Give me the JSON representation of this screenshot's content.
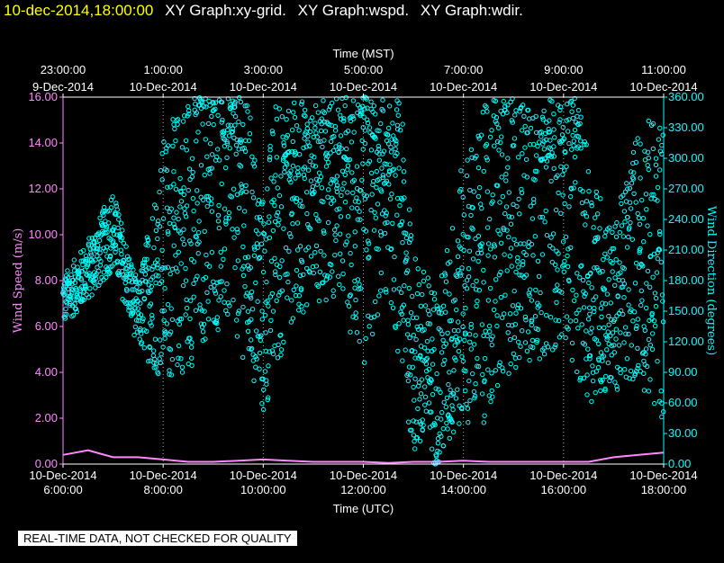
{
  "header": {
    "timestamp": "10-dec-2014,18:00:00",
    "graphs": [
      "XY Graph:xy-grid.",
      "XY Graph:wspd.",
      "XY Graph:wdir."
    ]
  },
  "disclaimer": "REAL-TIME DATA, NOT CHECKED FOR QUALITY",
  "colors": {
    "left_axis": "#ff88ff",
    "right_axis": "#00ffff",
    "speed_series": "#ff88ff",
    "direction_series": "#00ffff",
    "grid": "#aaaaaa"
  },
  "chart_data": {
    "type": "scatter",
    "top_axis": {
      "title": "Time (MST)",
      "ticks": [
        {
          "time": "23:00:00",
          "date": "9-Dec-2014"
        },
        {
          "time": "1:00:00",
          "date": "10-Dec-2014"
        },
        {
          "time": "3:00:00",
          "date": "10-Dec-2014"
        },
        {
          "time": "5:00:00",
          "date": "10-Dec-2014"
        },
        {
          "time": "7:00:00",
          "date": "10-Dec-2014"
        },
        {
          "time": "9:00:00",
          "date": "10-Dec-2014"
        },
        {
          "time": "11:00:00",
          "date": "10-Dec-2014"
        }
      ]
    },
    "bottom_axis": {
      "title": "Time (UTC)",
      "ticks": [
        {
          "date": "10-Dec-2014",
          "time": "6:00:00"
        },
        {
          "date": "10-Dec-2014",
          "time": "8:00:00"
        },
        {
          "date": "10-Dec-2014",
          "time": "10:00:00"
        },
        {
          "date": "10-Dec-2014",
          "time": "12:00:00"
        },
        {
          "date": "10-Dec-2014",
          "time": "14:00:00"
        },
        {
          "date": "10-Dec-2014",
          "time": "16:00:00"
        },
        {
          "date": "10-Dec-2014",
          "time": "18:00:00"
        }
      ],
      "range_hours_utc": [
        6,
        18
      ]
    },
    "left_axis": {
      "title": "Wind Speed (m/s)",
      "range": [
        0,
        16
      ],
      "ticks": [
        "0.00",
        "2.00",
        "4.00",
        "6.00",
        "8.00",
        "10.00",
        "12.00",
        "14.00",
        "16.00"
      ]
    },
    "right_axis": {
      "title": "Wind Direction (degrees)",
      "range": [
        0,
        360
      ],
      "ticks": [
        "0.00",
        "30.00",
        "60.00",
        "90.00",
        "120.00",
        "150.00",
        "180.00",
        "210.00",
        "240.00",
        "270.00",
        "300.00",
        "330.00",
        "360.00"
      ]
    },
    "grid": "vertical dotted at each bottom tick",
    "series": [
      {
        "axis": "left",
        "style": "line",
        "x_hours_utc": [
          6.0,
          6.5,
          7.0,
          7.5,
          8.0,
          8.5,
          9.0,
          9.5,
          10.0,
          10.5,
          11.0,
          11.5,
          12.0,
          12.5,
          13.0,
          13.5,
          14.0,
          14.5,
          15.0,
          15.5,
          16.0,
          16.5,
          17.0,
          17.5,
          18.0
        ],
        "values": [
          0.4,
          0.6,
          0.3,
          0.3,
          0.2,
          0.1,
          0.1,
          0.15,
          0.2,
          0.15,
          0.1,
          0.1,
          0.1,
          0.05,
          0.1,
          0.1,
          0.15,
          0.1,
          0.1,
          0.1,
          0.1,
          0.1,
          0.3,
          0.4,
          0.5
        ]
      },
      {
        "axis": "right",
        "style": "markers",
        "x_hours_utc": [
          6.0,
          6.5,
          7.0,
          7.5,
          8.0,
          8.5,
          9.0,
          9.5,
          10.0,
          10.5,
          11.0,
          11.5,
          12.0,
          12.5,
          13.0,
          13.5,
          14.0,
          14.5,
          15.0,
          15.5,
          16.0,
          16.5,
          17.0,
          17.5,
          18.0
        ],
        "values": [
          160,
          190,
          230,
          145,
          200,
          230,
          260,
          270,
          150,
          300,
          310,
          320,
          230,
          340,
          110,
          80,
          170,
          200,
          240,
          260,
          290,
          180,
          150,
          210,
          190
        ],
        "spread": [
          25,
          30,
          40,
          30,
          120,
          140,
          130,
          150,
          110,
          170,
          150,
          160,
          140,
          170,
          100,
          90,
          130,
          160,
          150,
          160,
          170,
          120,
          80,
          130,
          150
        ]
      }
    ]
  }
}
